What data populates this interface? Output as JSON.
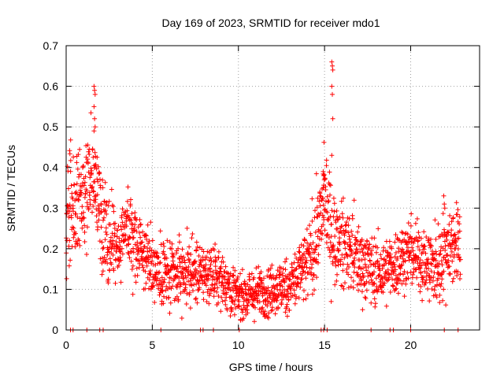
{
  "chart_data": {
    "type": "scatter",
    "title": "Day 169 of 2023, SRMTID for receiver mdo1",
    "xlabel": "GPS time / hours",
    "ylabel": "SRMTID / TECUs",
    "xlim": [
      0,
      24
    ],
    "ylim": [
      0,
      0.7
    ],
    "x_ticks": [
      0,
      5,
      10,
      15,
      20
    ],
    "x_tick_labels": [
      "0",
      "5",
      "10",
      "15",
      "20"
    ],
    "y_ticks": [
      0,
      0.1,
      0.2,
      0.3,
      0.4,
      0.5,
      0.6,
      0.7
    ],
    "y_tick_labels": [
      "0",
      "0.1",
      "0.2",
      "0.3",
      "0.4",
      "0.5",
      "0.6",
      "0.7"
    ],
    "grid": true,
    "marker": "plus",
    "marker_color": "#ff0000",
    "series": [
      {
        "name": "SRMTID",
        "approx_points_per_hour": 90,
        "trend": {
          "x": [
            0.0,
            0.3,
            0.6,
            0.9,
            1.2,
            1.5,
            1.8,
            2.1,
            2.4,
            3.0,
            3.5,
            4.0,
            4.5,
            5.0,
            5.5,
            6.0,
            7.0,
            8.0,
            9.0,
            10.0,
            11.0,
            12.0,
            13.0,
            14.0,
            14.5,
            14.8,
            15.0,
            15.3,
            15.6,
            16.0,
            16.5,
            17.0,
            17.5,
            18.0,
            18.5,
            19.0,
            19.5,
            20.0,
            20.5,
            21.0,
            21.5,
            22.0,
            22.5,
            22.9
          ],
          "y": [
            0.28,
            0.3,
            0.33,
            0.32,
            0.36,
            0.4,
            0.33,
            0.27,
            0.22,
            0.2,
            0.25,
            0.22,
            0.18,
            0.17,
            0.14,
            0.13,
            0.14,
            0.14,
            0.13,
            0.08,
            0.09,
            0.1,
            0.11,
            0.16,
            0.22,
            0.28,
            0.33,
            0.26,
            0.22,
            0.21,
            0.2,
            0.17,
            0.16,
            0.14,
            0.14,
            0.16,
            0.18,
            0.19,
            0.18,
            0.16,
            0.15,
            0.2,
            0.22,
            0.2
          ]
        },
        "spread": {
          "x": [
            0.0,
            1.0,
            2.0,
            3.0,
            4.0,
            5.0,
            6.0,
            8.0,
            10.0,
            12.0,
            13.0,
            14.0,
            15.0,
            16.0,
            18.0,
            20.0,
            22.0,
            22.9
          ],
          "y": [
            0.07,
            0.07,
            0.06,
            0.05,
            0.05,
            0.04,
            0.04,
            0.035,
            0.03,
            0.03,
            0.035,
            0.045,
            0.06,
            0.05,
            0.04,
            0.04,
            0.05,
            0.05
          ]
        },
        "spikes": [
          {
            "x": 1.65,
            "values": [
              0.6,
              0.59,
              0.58,
              0.55,
              0.52,
              0.5,
              0.49
            ]
          },
          {
            "x": 15.45,
            "values": [
              0.66,
              0.65,
              0.64,
              0.6,
              0.58,
              0.52,
              0.43
            ]
          },
          {
            "x": 14.95,
            "values": [
              0.39,
              0.38,
              0.37,
              0.35
            ]
          },
          {
            "x": 21.95,
            "values": [
              0.33,
              0.31,
              0.3
            ]
          }
        ],
        "zero_values_at_x": [
          0.25,
          0.4,
          1.2,
          1.95,
          2.15,
          5.5,
          7.8,
          7.95,
          8.55,
          10.05,
          14.8,
          14.95,
          15.15,
          17.7,
          18.8,
          19.0,
          20.0,
          21.95,
          22.75
        ]
      }
    ]
  }
}
